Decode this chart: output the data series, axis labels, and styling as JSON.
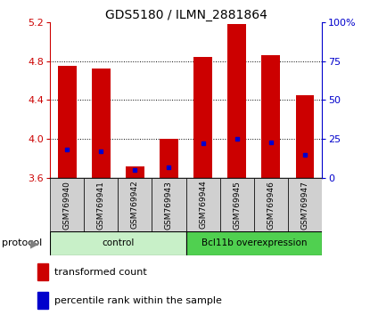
{
  "title": "GDS5180 / ILMN_2881864",
  "samples": [
    "GSM769940",
    "GSM769941",
    "GSM769942",
    "GSM769943",
    "GSM769944",
    "GSM769945",
    "GSM769946",
    "GSM769947"
  ],
  "transformed_count": [
    4.75,
    4.72,
    3.72,
    4.0,
    4.84,
    5.18,
    4.86,
    4.45
  ],
  "percentile_rank": [
    18,
    17,
    5,
    7,
    22,
    25,
    23,
    15
  ],
  "ylim_left": [
    3.6,
    5.2
  ],
  "ylim_right": [
    0,
    100
  ],
  "yticks_left": [
    3.6,
    4.0,
    4.4,
    4.8,
    5.2
  ],
  "yticks_right": [
    0,
    25,
    50,
    75,
    100
  ],
  "grid_values": [
    4.0,
    4.4,
    4.8
  ],
  "groups": [
    {
      "label": "control",
      "indices": [
        0,
        1,
        2,
        3
      ],
      "color": "#c8f0c8"
    },
    {
      "label": "Bcl11b overexpression",
      "indices": [
        4,
        5,
        6,
        7
      ],
      "color": "#50d050"
    }
  ],
  "bar_color": "#cc0000",
  "dot_color": "#0000cc",
  "bar_width": 0.55,
  "bar_bottom": 3.6,
  "protocol_label": "protocol",
  "legend": [
    {
      "label": "transformed count",
      "color": "#cc0000"
    },
    {
      "label": "percentile rank within the sample",
      "color": "#0000cc"
    }
  ],
  "left_tick_color": "#cc0000",
  "right_tick_color": "#0000cc",
  "sample_box_color": "#d0d0d0",
  "title_fontsize": 10,
  "tick_fontsize": 8,
  "legend_fontsize": 8
}
